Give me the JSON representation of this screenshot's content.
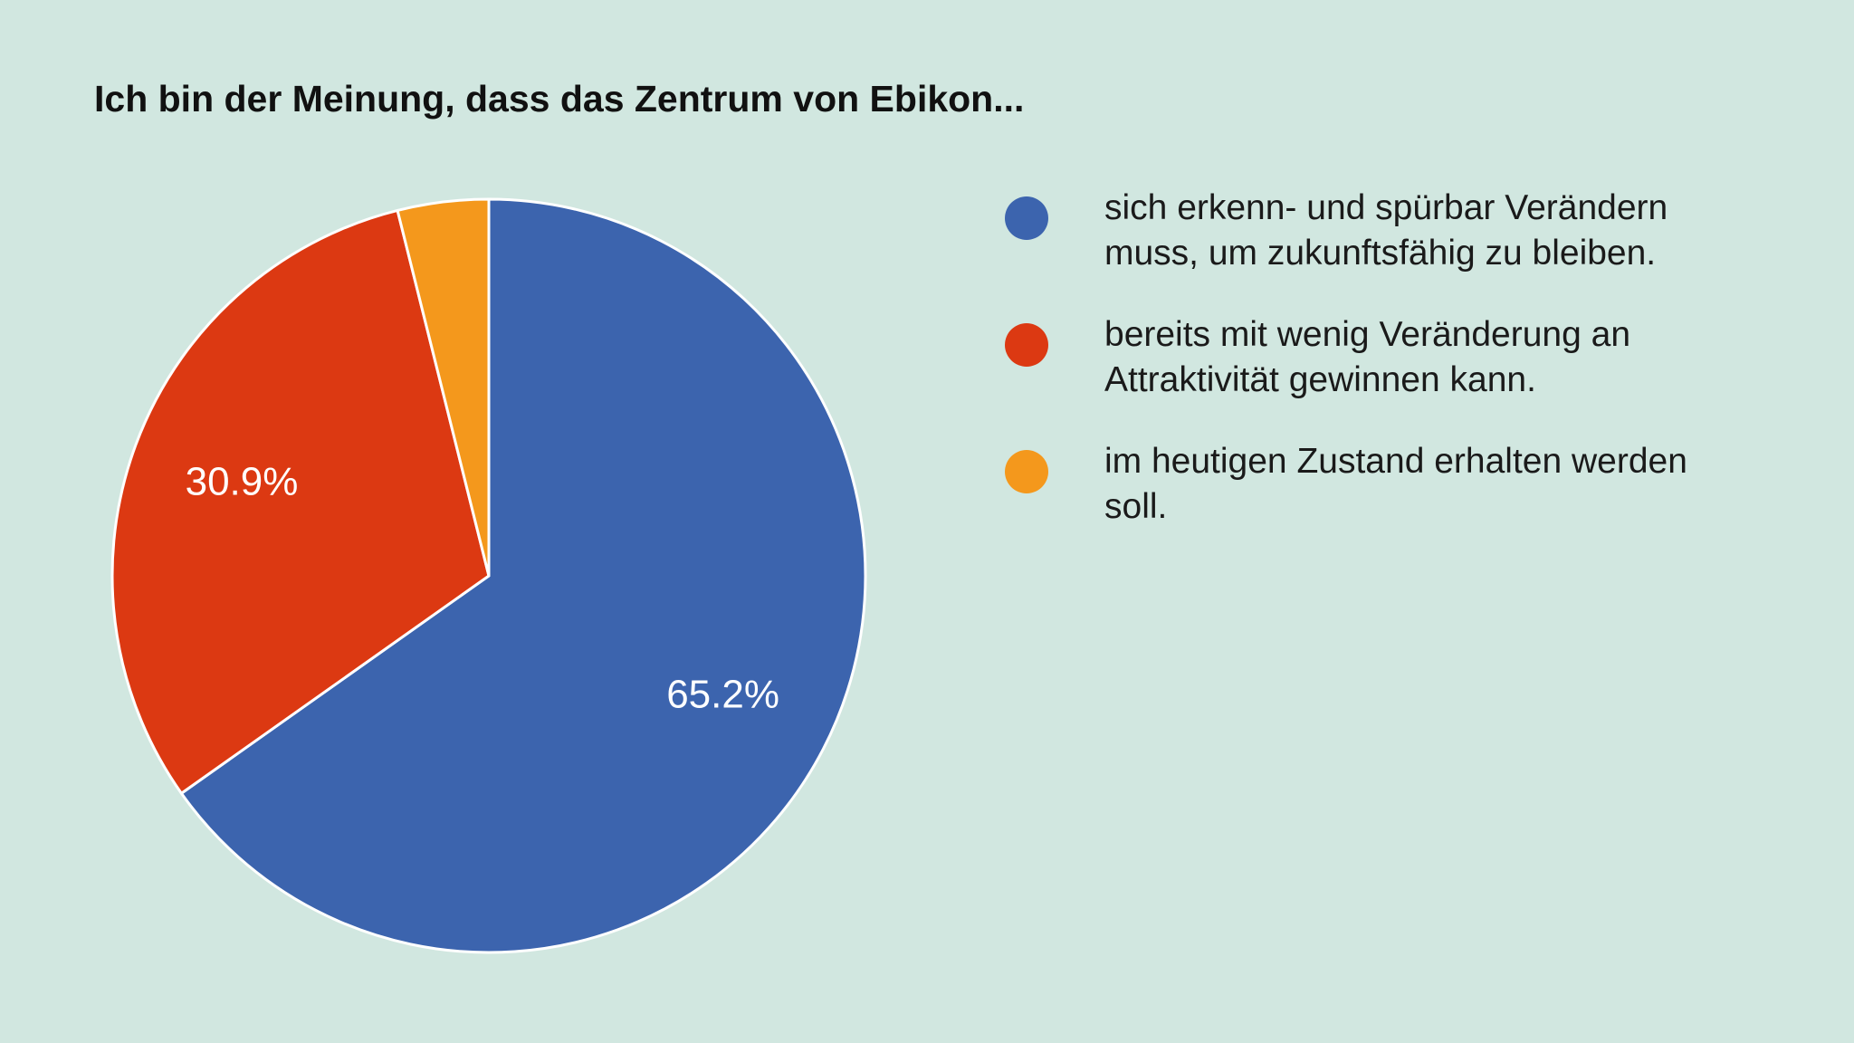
{
  "chart_data": {
    "type": "pie",
    "title": "Ich bin der Meinung, dass das Zentrum von Ebikon...",
    "categories": [
      "sich erkenn- und spürbar Verändern muss, um zukunftsfähig zu bleiben.",
      "bereits mit wenig Veränderung an Attraktivität gewinnen kann.",
      "im heutigen Zustand erhalten werden soll."
    ],
    "values": [
      65.2,
      30.9,
      3.9
    ],
    "labels": [
      "65.2%",
      "30.9%",
      ""
    ],
    "colors": [
      "#3c64ae",
      "#dc3912",
      "#f4981c"
    ],
    "legend_position": "right",
    "start_angle_deg": 0,
    "direction": "clockwise"
  },
  "legend": {
    "items": [
      {
        "text": "sich erkenn- und spürbar Verändern muss, um zukunftsfähig zu bleiben.",
        "color": "#3c64ae"
      },
      {
        "text": "bereits mit wenig Veränderung an Attraktivität gewinnen kann.",
        "color": "#dc3912"
      },
      {
        "text": "im heutigen Zustand erhalten werden soll.",
        "color": "#f4981c"
      }
    ]
  }
}
